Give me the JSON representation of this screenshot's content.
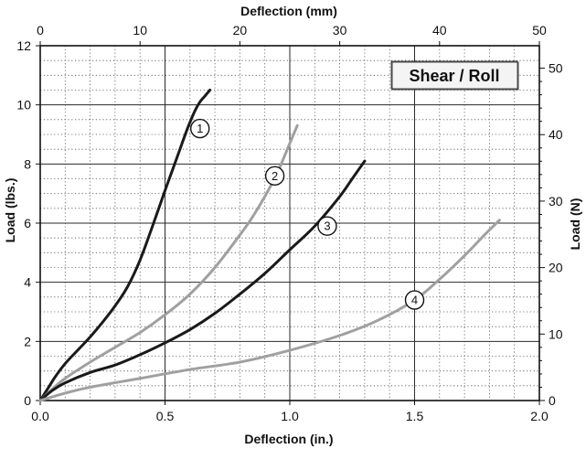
{
  "chart_data": {
    "type": "line",
    "badge": "Shear / Roll",
    "xlabel": "Deflection (in.)",
    "ylabel": "Load (lbs.)",
    "x2label": "Deflection (mm)",
    "y2label": "Load (N)",
    "xlim": [
      0,
      2.0
    ],
    "ylim": [
      0,
      12
    ],
    "x2lim": [
      0,
      50
    ],
    "y2lim": [
      0,
      53.376
    ],
    "x_ticks": [
      "0.0",
      "0.5",
      "1.0",
      "1.5",
      "2.0"
    ],
    "y_ticks": [
      "0",
      "2",
      "4",
      "6",
      "8",
      "10",
      "12"
    ],
    "x2_ticks": [
      "0",
      "10",
      "20",
      "30",
      "40",
      "50"
    ],
    "y2_ticks": [
      "0",
      "10",
      "20",
      "30",
      "40",
      "50"
    ],
    "series": [
      {
        "name": "1",
        "color": "#1a1a1a",
        "x": [
          0,
          0.03,
          0.06,
          0.1,
          0.15,
          0.2,
          0.25,
          0.3,
          0.35,
          0.4,
          0.45,
          0.5,
          0.53,
          0.56,
          0.59,
          0.62,
          0.64,
          0.66,
          0.68
        ],
        "y": [
          0,
          0.4,
          0.8,
          1.25,
          1.7,
          2.15,
          2.65,
          3.2,
          3.85,
          4.75,
          5.9,
          7.1,
          7.8,
          8.5,
          9.2,
          9.8,
          10.1,
          10.3,
          10.5
        ]
      },
      {
        "name": "2",
        "color": "#a0a0a0",
        "x": [
          0,
          0.05,
          0.1,
          0.2,
          0.3,
          0.4,
          0.5,
          0.6,
          0.7,
          0.8,
          0.85,
          0.9,
          0.95,
          1.0,
          1.03
        ],
        "y": [
          0,
          0.4,
          0.75,
          1.3,
          1.8,
          2.3,
          2.9,
          3.6,
          4.5,
          5.6,
          6.2,
          6.9,
          7.7,
          8.7,
          9.3
        ]
      },
      {
        "name": "3",
        "color": "#1a1a1a",
        "x": [
          0,
          0.05,
          0.1,
          0.2,
          0.3,
          0.4,
          0.5,
          0.6,
          0.7,
          0.8,
          0.9,
          1.0,
          1.1,
          1.2,
          1.25,
          1.3
        ],
        "y": [
          0,
          0.35,
          0.6,
          0.95,
          1.2,
          1.55,
          1.95,
          2.4,
          2.95,
          3.6,
          4.3,
          5.1,
          5.9,
          6.9,
          7.5,
          8.1
        ]
      },
      {
        "name": "4",
        "color": "#a0a0a0",
        "x": [
          0,
          0.1,
          0.2,
          0.4,
          0.6,
          0.8,
          1.0,
          1.2,
          1.35,
          1.5,
          1.6,
          1.7,
          1.78,
          1.84
        ],
        "y": [
          0,
          0.25,
          0.45,
          0.75,
          1.05,
          1.3,
          1.7,
          2.2,
          2.7,
          3.4,
          4.1,
          4.9,
          5.6,
          6.1
        ]
      }
    ],
    "labels": [
      {
        "text": "1",
        "x": 0.64,
        "y": 9.2
      },
      {
        "text": "2",
        "x": 0.94,
        "y": 7.6
      },
      {
        "text": "3",
        "x": 1.15,
        "y": 5.9
      },
      {
        "text": "4",
        "x": 1.5,
        "y": 3.4
      }
    ]
  }
}
